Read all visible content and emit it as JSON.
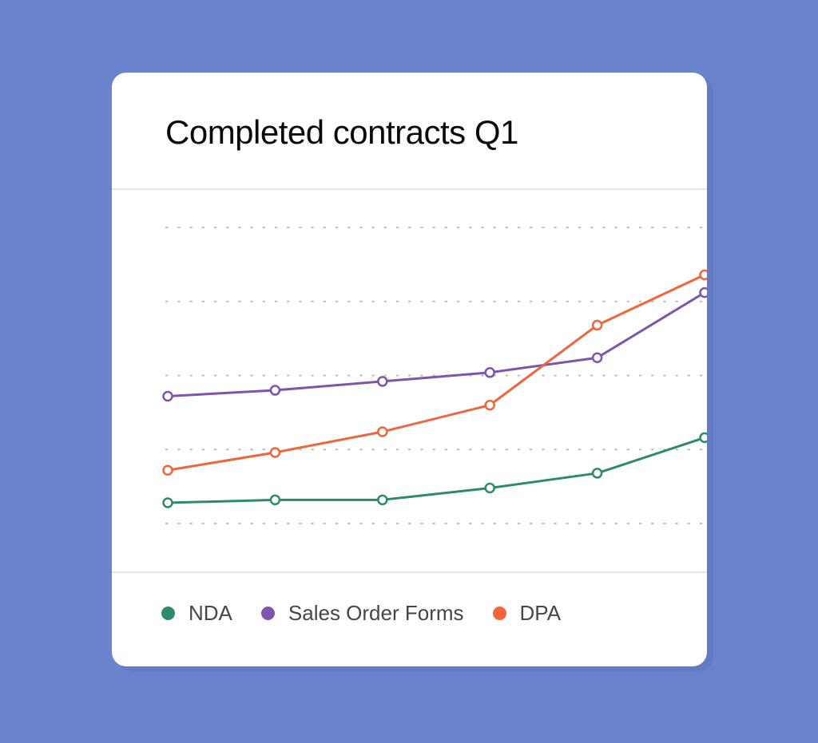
{
  "card": {
    "title": "Completed contracts Q1"
  },
  "colors": {
    "background": "#6983cd",
    "card": "#ffffff",
    "grid": "#b9b9bf",
    "NDA": "#2e8a6e",
    "Sales Order Forms": "#7e55a8",
    "DPA": "#f0653c"
  },
  "legend": {
    "items": [
      {
        "label": "NDA",
        "color": "#2e8a6e"
      },
      {
        "label": "Sales Order Forms",
        "color": "#7e55a8"
      },
      {
        "label": "DPA",
        "color": "#f0653c"
      }
    ]
  },
  "chart_data": {
    "type": "line",
    "title": "Completed contracts Q1",
    "xlabel": "",
    "ylabel": "",
    "x": [
      1,
      2,
      3,
      4,
      5,
      6
    ],
    "ylim": [
      0,
      100
    ],
    "yticks": [
      0,
      25,
      50,
      75,
      100
    ],
    "grid": true,
    "grid_style": "dotted",
    "axis_labels_visible": false,
    "legend_position": "bottom",
    "series": [
      {
        "name": "NDA",
        "color": "#2e8a6e",
        "values": [
          7,
          8,
          8,
          12,
          17,
          29
        ]
      },
      {
        "name": "Sales Order Forms",
        "color": "#7e55a8",
        "values": [
          43,
          45,
          48,
          51,
          56,
          78
        ]
      },
      {
        "name": "DPA",
        "color": "#f0653c",
        "values": [
          18,
          24,
          31,
          40,
          67,
          84
        ]
      }
    ]
  }
}
